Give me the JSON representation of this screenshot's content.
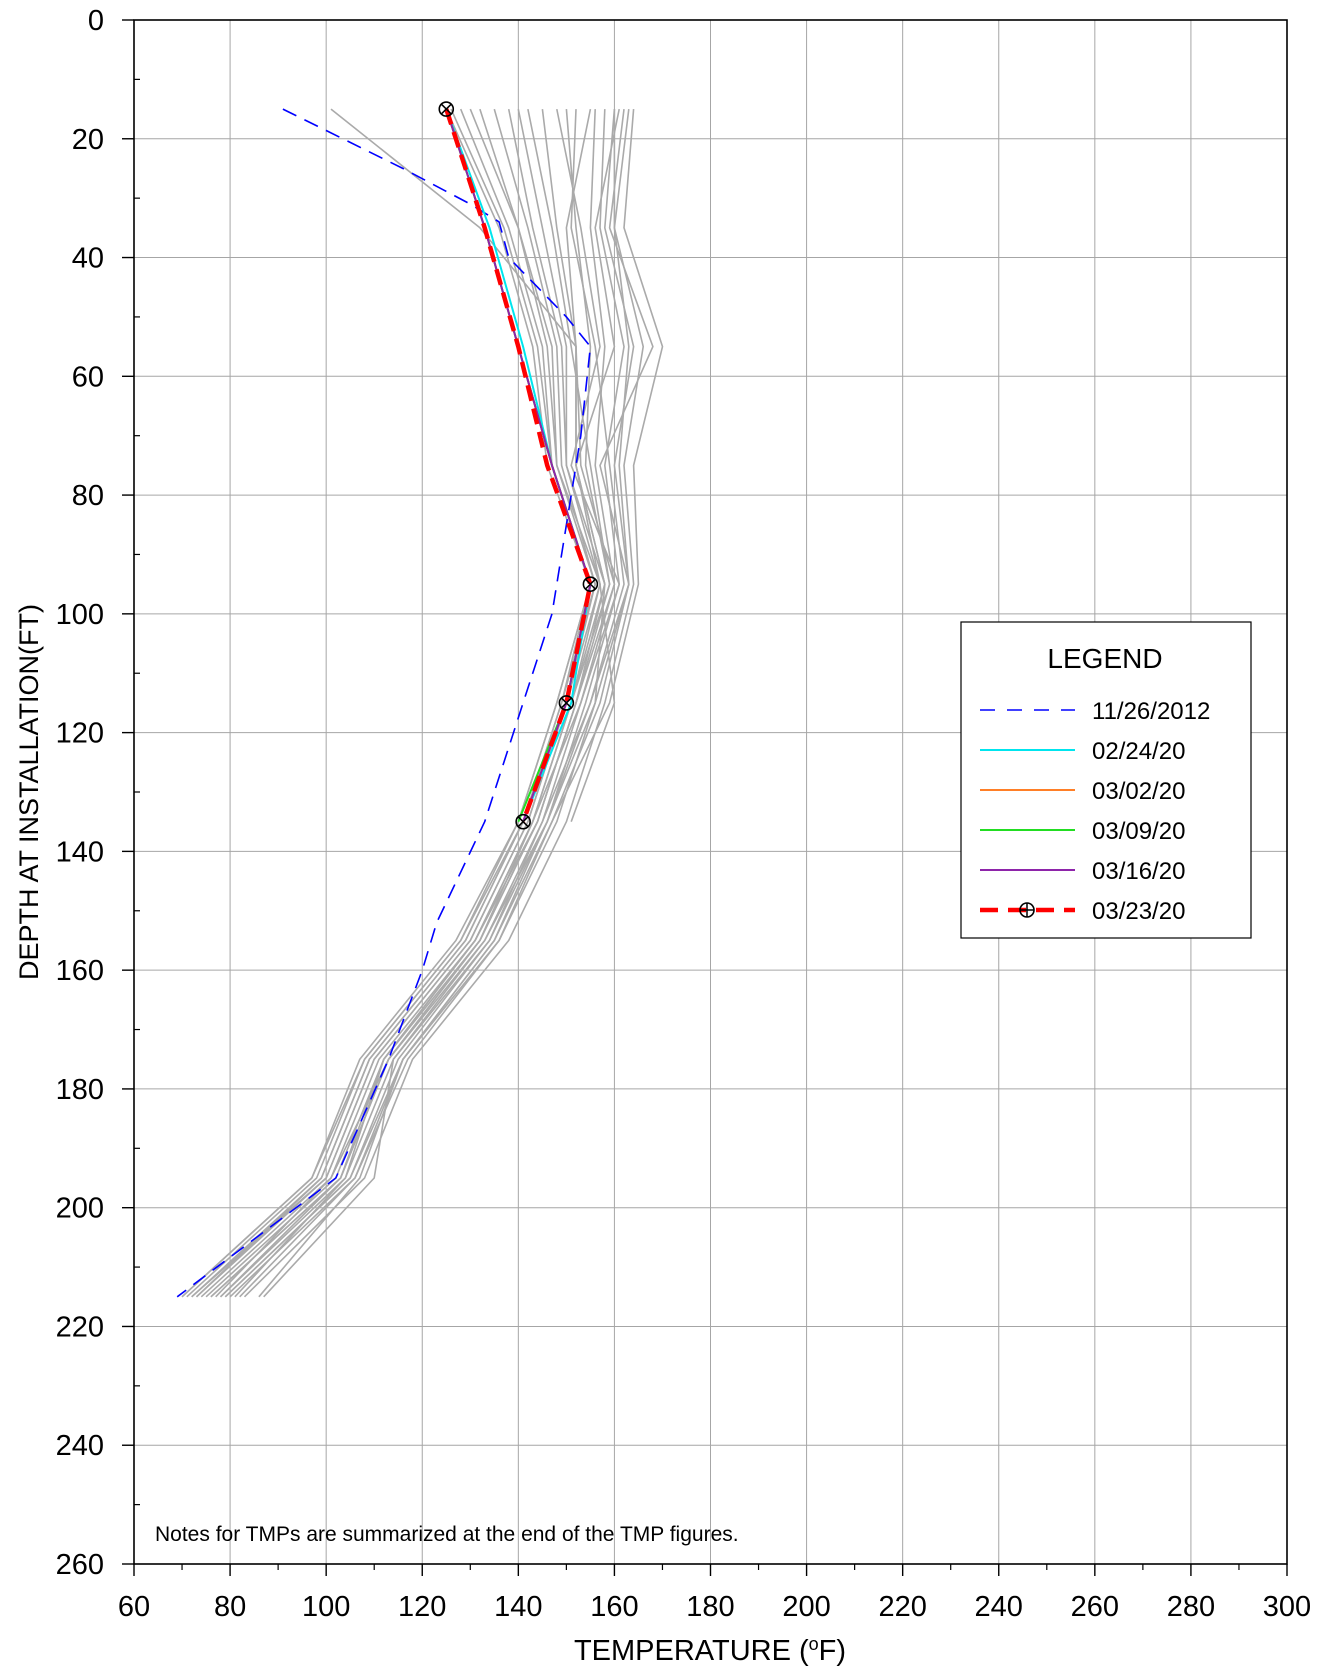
{
  "chart_data": {
    "type": "line",
    "title": "",
    "xlabel": "TEMPERATURE (",
    "xlabel_super": "o",
    "xlabel_end": "F)",
    "ylabel": "DEPTH AT INSTALLATION(FT)",
    "xlim": [
      60,
      300
    ],
    "ylim": [
      260,
      0
    ],
    "y_inverted": true,
    "x_ticks": [
      60,
      80,
      100,
      120,
      140,
      160,
      180,
      200,
      220,
      240,
      260,
      280,
      300
    ],
    "y_ticks": [
      0,
      20,
      40,
      60,
      80,
      100,
      120,
      140,
      160,
      180,
      200,
      220,
      240,
      260
    ],
    "x_tick_labels": [
      "60",
      "80",
      "100",
      "120",
      "140",
      "160",
      "180",
      "200",
      "220",
      "240",
      "260",
      "280",
      "300"
    ],
    "y_tick_labels": [
      "0",
      "20",
      "40",
      "60",
      "80",
      "100",
      "120",
      "140",
      "160",
      "180",
      "200",
      "220",
      "240",
      "260"
    ],
    "grid": true,
    "legend_placement": "right",
    "note": "Notes for TMPs are summarized at the end of the TMP figures.",
    "legend": {
      "title": "LEGEND",
      "items": [
        "11/26/2012",
        "02/24/20",
        "03/02/20",
        "03/09/20",
        "03/16/20",
        "03/23/20"
      ]
    },
    "background_envelope": {
      "color": "#aaaaaa",
      "depths": [
        15,
        35,
        55,
        75,
        95,
        115,
        135,
        155,
        175,
        195,
        215
      ],
      "profiles": [
        [
          163,
          160,
          166,
          162,
          164,
          158,
          150,
          138,
          118,
          108,
          83
        ],
        [
          160,
          158,
          164,
          160,
          163,
          156,
          148,
          136,
          116,
          106,
          80
        ],
        [
          158,
          157,
          162,
          158,
          161,
          154,
          146,
          134,
          114,
          104,
          78
        ],
        [
          164,
          162,
          170,
          164,
          165,
          159,
          147,
          136,
          117,
          106,
          82
        ],
        [
          156,
          155,
          158,
          156,
          160,
          153,
          145,
          133,
          113,
          103,
          76
        ],
        [
          150,
          152,
          155,
          154,
          159,
          152,
          144,
          132,
          112,
          102,
          75
        ],
        [
          145,
          148,
          152,
          152,
          158,
          151,
          143,
          131,
          111,
          101,
          74
        ],
        [
          140,
          145,
          150,
          150,
          157,
          150,
          142,
          130,
          110,
          100,
          73
        ],
        [
          135,
          142,
          148,
          149,
          156,
          150,
          142,
          130,
          110,
          100,
          72
        ],
        [
          130,
          140,
          146,
          148,
          156,
          149,
          141,
          129,
          109,
          99,
          72
        ],
        [
          128,
          138,
          145,
          147,
          155,
          149,
          141,
          128,
          108,
          98,
          71
        ],
        [
          126,
          137,
          144,
          147,
          155,
          148,
          140,
          128,
          108,
          97,
          70
        ],
        [
          125,
          136,
          143,
          146,
          155,
          148,
          140,
          127,
          107,
          97,
          70
        ],
        [
          155,
          150,
          152,
          153,
          160,
          152,
          144,
          131,
          112,
          103,
          78
        ],
        [
          148,
          153,
          157,
          151,
          161,
          153,
          143,
          132,
          113,
          101,
          77
        ],
        [
          162,
          159,
          168,
          157,
          163,
          155,
          146,
          135,
          116,
          107,
          86
        ],
        [
          152,
          151,
          156,
          159,
          162,
          155,
          145,
          134,
          115,
          105,
          79
        ],
        [
          142,
          147,
          151,
          155,
          159,
          151,
          143,
          131,
          112,
          104,
          81
        ],
        [
          138,
          143,
          149,
          150,
          158,
          156,
          146,
          133,
          114,
          110,
          87
        ],
        [
          101,
          132,
          152,
          152,
          158,
          152,
          144,
          132,
          113,
          103,
          76
        ],
        [
          161,
          156,
          160,
          152,
          157,
          160,
          151,
          null,
          null,
          null,
          null
        ],
        [
          132,
          140,
          147,
          148,
          157,
          151,
          141,
          129,
          109,
          99,
          73
        ],
        [
          160,
          160,
          163,
          161,
          163,
          157,
          147,
          135,
          116,
          105,
          79
        ]
      ]
    },
    "series": [
      {
        "name": "11/26/2012",
        "color": "#0000ff",
        "style": "dashed",
        "depths": [
          15,
          25,
          31,
          34,
          40,
          50,
          55,
          70,
          85,
          100,
          115,
          135,
          152,
          160,
          175,
          195,
          215
        ],
        "values": [
          91,
          116,
          130,
          136,
          138,
          150,
          155,
          153,
          150,
          147,
          141,
          133,
          123,
          120,
          113,
          102,
          69
        ]
      },
      {
        "name": "02/24/20",
        "color": "#00e5ee",
        "style": "solid",
        "depths": [
          15,
          35,
          55,
          75,
          95,
          115,
          135
        ],
        "values": [
          125,
          134,
          141,
          147,
          155,
          151,
          141
        ]
      },
      {
        "name": "03/02/20",
        "color": "#ff7f27",
        "style": "solid",
        "depths": [
          15,
          35,
          55,
          75,
          95,
          115,
          135
        ],
        "values": [
          125,
          133,
          140,
          147,
          155,
          150,
          141
        ]
      },
      {
        "name": "03/09/20",
        "color": "#22dd22",
        "style": "solid",
        "depths": [
          15,
          35,
          55,
          75,
          95,
          115,
          135
        ],
        "values": [
          125,
          133,
          140,
          147,
          155,
          150,
          140
        ]
      },
      {
        "name": "03/16/20",
        "color": "#8e24aa",
        "style": "solid",
        "depths": [
          15,
          35,
          55,
          75,
          95,
          115,
          135
        ],
        "values": [
          125,
          133,
          140,
          147,
          155,
          150,
          141
        ]
      },
      {
        "name": "03/23/20",
        "color": "#ff0000",
        "style": "dashed-marker",
        "depths": [
          15,
          35,
          55,
          75,
          95,
          115,
          135
        ],
        "values": [
          125,
          133,
          140,
          146,
          155,
          150,
          141
        ]
      }
    ]
  }
}
